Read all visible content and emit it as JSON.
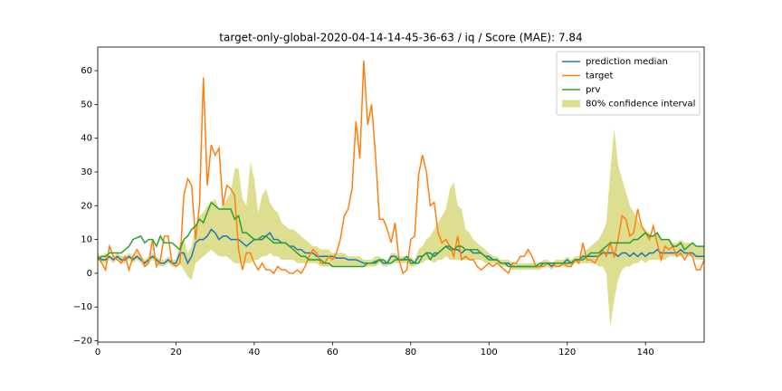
{
  "chart_data": {
    "type": "line",
    "title": "target-only-global-2020-04-14-14-45-36-63 / iq / Score (MAE): 7.84",
    "x": [
      0,
      1,
      2,
      3,
      4,
      5,
      6,
      7,
      8,
      9,
      10,
      11,
      12,
      13,
      14,
      15,
      16,
      17,
      18,
      19,
      20,
      21,
      22,
      23,
      24,
      25,
      26,
      27,
      28,
      29,
      30,
      31,
      32,
      33,
      34,
      35,
      36,
      37,
      38,
      39,
      40,
      41,
      42,
      43,
      44,
      45,
      46,
      47,
      48,
      49,
      50,
      51,
      52,
      53,
      54,
      55,
      56,
      57,
      58,
      59,
      60,
      61,
      62,
      63,
      64,
      65,
      66,
      67,
      68,
      69,
      70,
      71,
      72,
      73,
      74,
      75,
      76,
      77,
      78,
      79,
      80,
      81,
      82,
      83,
      84,
      85,
      86,
      87,
      88,
      89,
      90,
      91,
      92,
      93,
      94,
      95,
      96,
      97,
      98,
      99,
      100,
      101,
      102,
      103,
      104,
      105,
      106,
      107,
      108,
      109,
      110,
      111,
      112,
      113,
      114,
      115,
      116,
      117,
      118,
      119,
      120,
      121,
      122,
      123,
      124,
      125,
      126,
      127,
      128,
      129,
      130,
      131,
      132,
      133,
      134,
      135,
      136,
      137,
      138,
      139,
      140,
      141,
      142,
      143,
      144,
      145,
      146,
      147,
      148,
      149,
      150,
      151,
      152,
      153,
      154,
      155
    ],
    "xlim": [
      0,
      155
    ],
    "ylim": [
      -20.4,
      67
    ],
    "xticks": [
      0,
      20,
      40,
      60,
      80,
      100,
      120,
      140
    ],
    "yticks": [
      {
        "value": -20,
        "label": "−20"
      },
      {
        "value": -10,
        "label": "−10"
      },
      0,
      10,
      20,
      30,
      40,
      50,
      60
    ],
    "legend": "upper right",
    "band": {
      "name": "80% confidence interval",
      "color": "#bcbd22",
      "lower": [
        4,
        3,
        3,
        4,
        3,
        4,
        3,
        3,
        4,
        3,
        4,
        3,
        2,
        3,
        4,
        3,
        2,
        2,
        3,
        2,
        2,
        3,
        1,
        -1,
        -2,
        3,
        4,
        5,
        6,
        7,
        6,
        5,
        5,
        5,
        4,
        3,
        3,
        3,
        3,
        3,
        4,
        4,
        5,
        5,
        6,
        5,
        5,
        4,
        4,
        4,
        4,
        3,
        3,
        3,
        3,
        3,
        3,
        2,
        2,
        2,
        2,
        2,
        2,
        2,
        2,
        2,
        2,
        2,
        2,
        2,
        2,
        2,
        3,
        2,
        2,
        3,
        3,
        3,
        3,
        3,
        2,
        2,
        3,
        3,
        4,
        4,
        3,
        4,
        4,
        5,
        4,
        4,
        4,
        4,
        4,
        4,
        4,
        4,
        4,
        3,
        3,
        3,
        3,
        2,
        2,
        2,
        1,
        1,
        1,
        1,
        1,
        1,
        1,
        1,
        2,
        2,
        1,
        2,
        2,
        2,
        2,
        2,
        3,
        3,
        3,
        3,
        3,
        3,
        2,
        2,
        0,
        -16,
        -8,
        -2,
        1,
        2,
        2,
        3,
        3,
        4,
        3,
        4,
        4,
        4,
        4,
        4,
        5,
        5,
        5,
        5,
        5,
        5,
        5,
        4,
        4,
        4
      ],
      "upper": [
        6,
        5,
        6,
        5,
        5,
        6,
        5,
        5,
        6,
        5,
        6,
        5,
        4,
        5,
        6,
        5,
        4,
        4,
        5,
        4,
        4,
        9,
        10,
        6,
        8,
        14,
        17,
        18,
        20,
        21,
        22,
        19,
        20,
        22,
        24,
        31,
        31,
        22,
        20,
        33,
        28,
        18,
        23,
        25,
        21,
        19,
        18,
        15,
        14,
        13,
        13,
        12,
        11,
        10,
        9,
        8,
        8,
        7,
        7,
        7,
        6,
        6,
        6,
        6,
        5,
        5,
        5,
        5,
        4,
        4,
        4,
        5,
        5,
        4,
        4,
        6,
        6,
        5,
        5,
        5,
        5,
        4,
        7,
        8,
        10,
        11,
        13,
        15,
        17,
        19,
        25,
        27,
        20,
        19,
        13,
        12,
        10,
        9,
        8,
        7,
        6,
        5,
        5,
        4,
        4,
        4,
        3,
        3,
        3,
        3,
        3,
        3,
        3,
        3,
        4,
        4,
        3,
        4,
        4,
        4,
        5,
        4,
        5,
        5,
        6,
        7,
        8,
        9,
        10,
        12,
        15,
        30,
        43,
        32,
        28,
        24,
        20,
        18,
        16,
        14,
        13,
        12,
        11,
        12,
        10,
        10,
        10,
        9,
        9,
        10,
        9,
        9,
        9,
        8,
        8,
        8
      ]
    },
    "series": [
      {
        "name": "prediction median",
        "color": "#1f77b4",
        "values": [
          5,
          4,
          4,
          5,
          4,
          5,
          4,
          4,
          5,
          4,
          5,
          4,
          3,
          4,
          5,
          4,
          3,
          3,
          4,
          3,
          3,
          6,
          6,
          3,
          5,
          9,
          10,
          10,
          11,
          13,
          12,
          10,
          11,
          11,
          10,
          10,
          10,
          9,
          8,
          9,
          10,
          10,
          10,
          11,
          12,
          10,
          10,
          9,
          9,
          8,
          8,
          7,
          7,
          6,
          6,
          6,
          5,
          5,
          5,
          5,
          5,
          4.5,
          4.5,
          4.5,
          4,
          4,
          4,
          3.5,
          3,
          3,
          3,
          3.5,
          4,
          3,
          3,
          5,
          5,
          4,
          4,
          4,
          4,
          3,
          5,
          5,
          6,
          6,
          5,
          6,
          7,
          8,
          7,
          7,
          7,
          6,
          7,
          7,
          6,
          6,
          6,
          5,
          5,
          4,
          4,
          3,
          3,
          3,
          2,
          2,
          2,
          2,
          2,
          2,
          2,
          2,
          3,
          3,
          2,
          3,
          3,
          3,
          4,
          3,
          4,
          4,
          5,
          5,
          5,
          5,
          5,
          6,
          6,
          6,
          6,
          5,
          6,
          6,
          5,
          6,
          5,
          6,
          5,
          6,
          6,
          7,
          6,
          6,
          6,
          6,
          6,
          7,
          6,
          6,
          6,
          5,
          5,
          5
        ]
      },
      {
        "name": "target",
        "color": "#ff7f0e",
        "values": [
          5,
          3,
          1,
          8,
          5,
          4,
          3,
          5,
          1,
          5,
          7,
          5,
          2,
          3,
          10,
          2,
          4,
          11,
          11,
          3,
          2,
          3,
          23,
          28,
          26,
          10,
          20,
          58,
          26,
          38,
          35,
          37,
          20,
          26,
          25,
          23,
          7,
          1,
          6,
          6,
          3,
          1,
          3,
          1,
          1,
          0,
          2,
          1,
          1,
          0,
          0,
          1,
          0,
          2,
          5,
          7,
          6,
          3,
          3,
          5,
          4,
          6,
          10,
          17,
          19,
          25,
          45,
          34,
          63,
          44,
          50,
          35,
          16,
          16,
          13,
          9,
          15,
          4,
          0,
          1,
          10,
          11,
          29,
          35,
          30,
          20,
          21,
          12,
          9,
          10,
          8,
          5,
          11,
          4,
          5,
          4,
          4,
          2,
          1,
          2,
          3,
          2,
          3,
          2,
          1,
          0,
          3,
          3,
          5,
          5,
          7,
          5,
          2,
          2,
          2,
          3,
          3,
          2,
          2,
          3,
          2,
          2,
          4,
          3,
          9,
          4,
          4,
          3,
          5,
          7,
          5,
          9,
          5,
          10,
          17,
          16,
          11,
          12,
          19,
          14,
          12,
          10,
          14,
          9,
          4,
          8,
          7,
          8,
          5,
          6,
          4,
          6,
          5,
          1,
          1,
          4
        ]
      },
      {
        "name": "prv",
        "color": "#2ca02c",
        "values": [
          4,
          5,
          5,
          6,
          6,
          6,
          6,
          7,
          8,
          10,
          10.5,
          11,
          9,
          10,
          10,
          8,
          11,
          9,
          9,
          9,
          8,
          7,
          10,
          11,
          13,
          14,
          16,
          15,
          18,
          21,
          20,
          19,
          19,
          19,
          19,
          16,
          17,
          12,
          12,
          11,
          10,
          10,
          11,
          11,
          10,
          9,
          9,
          9,
          9,
          8,
          7,
          6,
          5,
          5,
          4,
          4,
          4,
          4,
          3,
          3,
          2,
          2,
          2,
          2,
          2,
          2,
          2,
          2,
          2,
          3,
          3,
          3,
          4,
          4,
          3,
          3,
          4,
          4,
          4,
          5,
          3,
          3,
          3,
          5,
          6,
          4,
          6,
          6,
          7,
          8,
          8,
          7,
          8,
          8,
          7,
          7,
          7,
          7,
          6,
          5,
          4,
          4,
          4,
          3,
          3,
          2,
          2,
          2,
          2,
          2,
          2,
          2,
          2,
          3,
          3,
          3,
          3,
          3,
          3,
          3,
          3,
          3,
          4,
          4,
          4,
          5,
          6,
          6,
          6,
          7,
          8,
          9,
          9,
          9,
          9,
          9,
          9,
          10,
          10,
          11,
          12,
          11,
          11,
          12,
          10,
          10,
          10,
          8,
          8,
          9,
          7,
          8,
          9,
          8,
          8,
          8
        ]
      }
    ]
  }
}
